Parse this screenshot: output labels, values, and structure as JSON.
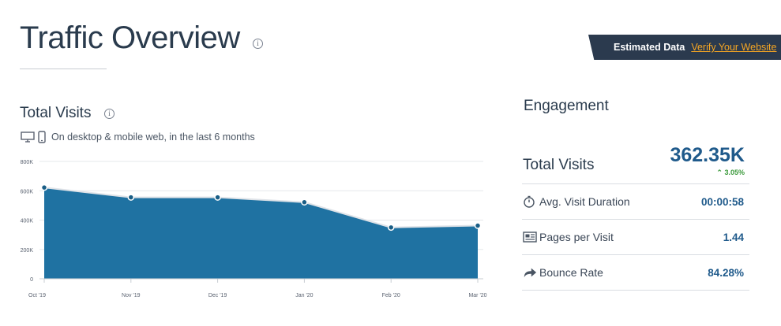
{
  "page": {
    "title": "Traffic Overview",
    "info_icon": "i"
  },
  "banner": {
    "text": "Estimated Data",
    "link": "Verify Your Website"
  },
  "total_visits": {
    "title": "Total Visits",
    "info_icon": "i",
    "caption": "On desktop & mobile web, in the last 6 months",
    "icons": [
      "desktop-icon",
      "mobile-icon"
    ]
  },
  "chart_data": {
    "type": "area",
    "title": "",
    "xlabel": "",
    "ylabel": "",
    "categories": [
      "Oct '19",
      "Nov '19",
      "Dec '19",
      "Jan '20",
      "Feb '20",
      "Mar '20"
    ],
    "values": [
      622000,
      555000,
      555000,
      522000,
      350000,
      362350
    ],
    "y_ticks": [
      "0",
      "200K",
      "400K",
      "600K",
      "800K"
    ],
    "ylim": [
      0,
      800000
    ],
    "grid": true,
    "fill_color": "#1f72a2",
    "line_color": "#dfe3e8",
    "marker_color": "#1a5e86"
  },
  "engagement": {
    "title": "Engagement",
    "total_visits": {
      "label": "Total Visits",
      "value": "362.35K",
      "change": "3.05%",
      "change_color": "#3c9a3c"
    },
    "metrics": [
      {
        "label": "Avg. Visit Duration",
        "value": "00:00:58",
        "icon": "stopwatch-icon"
      },
      {
        "label": "Pages per Visit",
        "value": "1.44",
        "icon": "pages-icon"
      },
      {
        "label": "Bounce Rate",
        "value": "84.28%",
        "icon": "bounce-arrow-icon"
      }
    ]
  },
  "colors": {
    "accent": "#1f5a8b",
    "banner_bg": "#2b3a4e",
    "banner_link": "#f6a623"
  }
}
